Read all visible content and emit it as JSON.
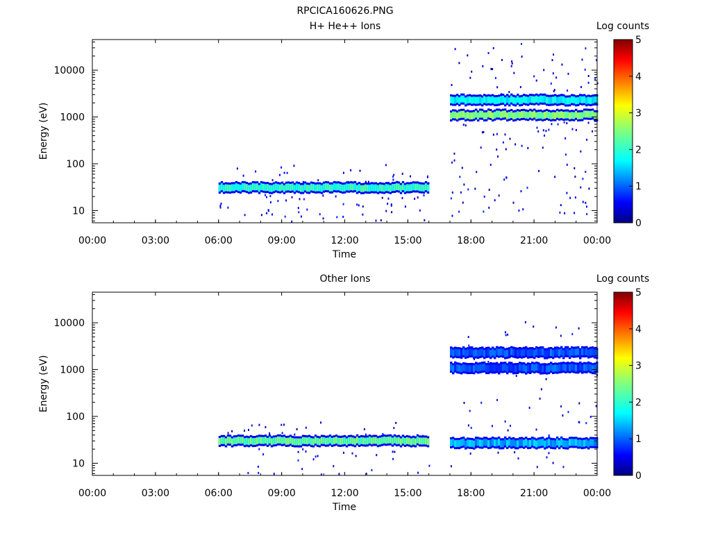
{
  "figure": {
    "title": "RPCICA160626.PNG"
  },
  "chart_data": [
    {
      "type": "heatmap",
      "title": "H+ He++ Ions",
      "xlabel": "Time",
      "ylabel": "Energy (eV)",
      "x_ticks": [
        "00:00",
        "03:00",
        "06:00",
        "09:00",
        "12:00",
        "15:00",
        "18:00",
        "21:00",
        "00:00"
      ],
      "y_ticks": [
        "10",
        "100",
        "1000",
        "10000"
      ],
      "y_scale": "log",
      "ylim": [
        5.5,
        45000
      ],
      "xlim_hours": [
        0,
        24
      ],
      "colorbar": {
        "title": "Log counts",
        "ticks": [
          "0",
          "1",
          "2",
          "3",
          "4",
          "5"
        ],
        "range": [
          0,
          5
        ]
      },
      "bands": [
        {
          "t_start": 6.0,
          "t_end": 16.0,
          "e_center": 31,
          "log_counts": 2.0
        },
        {
          "t_start": 17.0,
          "t_end": 24.0,
          "e_center": 2300,
          "log_counts": 1.7
        },
        {
          "t_start": 17.0,
          "t_end": 24.0,
          "e_center": 1100,
          "log_counts": 2.5
        }
      ],
      "scatter": [
        {
          "t_start": 6.0,
          "t_end": 16.0,
          "e_min": 6,
          "e_max": 100,
          "density": 0.25
        },
        {
          "t_start": 17.0,
          "t_end": 24.0,
          "e_min": 8,
          "e_max": 42000,
          "density": 0.55
        }
      ]
    },
    {
      "type": "heatmap",
      "title": "Other Ions",
      "xlabel": "Time",
      "ylabel": "Energy (eV)",
      "x_ticks": [
        "00:00",
        "03:00",
        "06:00",
        "09:00",
        "12:00",
        "15:00",
        "18:00",
        "21:00",
        "00:00"
      ],
      "y_ticks": [
        "10",
        "100",
        "1000",
        "10000"
      ],
      "y_scale": "log",
      "ylim": [
        5.5,
        45000
      ],
      "xlim_hours": [
        0,
        24
      ],
      "colorbar": {
        "title": "Log counts",
        "ticks": [
          "0",
          "1",
          "2",
          "3",
          "4",
          "5"
        ],
        "range": [
          0,
          5
        ]
      },
      "bands": [
        {
          "t_start": 6.0,
          "t_end": 16.0,
          "e_center": 30,
          "log_counts": 2.3
        },
        {
          "t_start": 17.0,
          "t_end": 24.0,
          "e_center": 2300,
          "log_counts": 0.9
        },
        {
          "t_start": 17.0,
          "t_end": 24.0,
          "e_center": 1080,
          "log_counts": 0.9
        },
        {
          "t_start": 17.0,
          "t_end": 24.0,
          "e_center": 27,
          "log_counts": 1.3
        }
      ],
      "scatter": [
        {
          "t_start": 6.0,
          "t_end": 16.0,
          "e_min": 6,
          "e_max": 80,
          "density": 0.15
        },
        {
          "t_start": 17.0,
          "t_end": 24.0,
          "e_min": 8,
          "e_max": 12000,
          "density": 0.22
        }
      ]
    }
  ]
}
